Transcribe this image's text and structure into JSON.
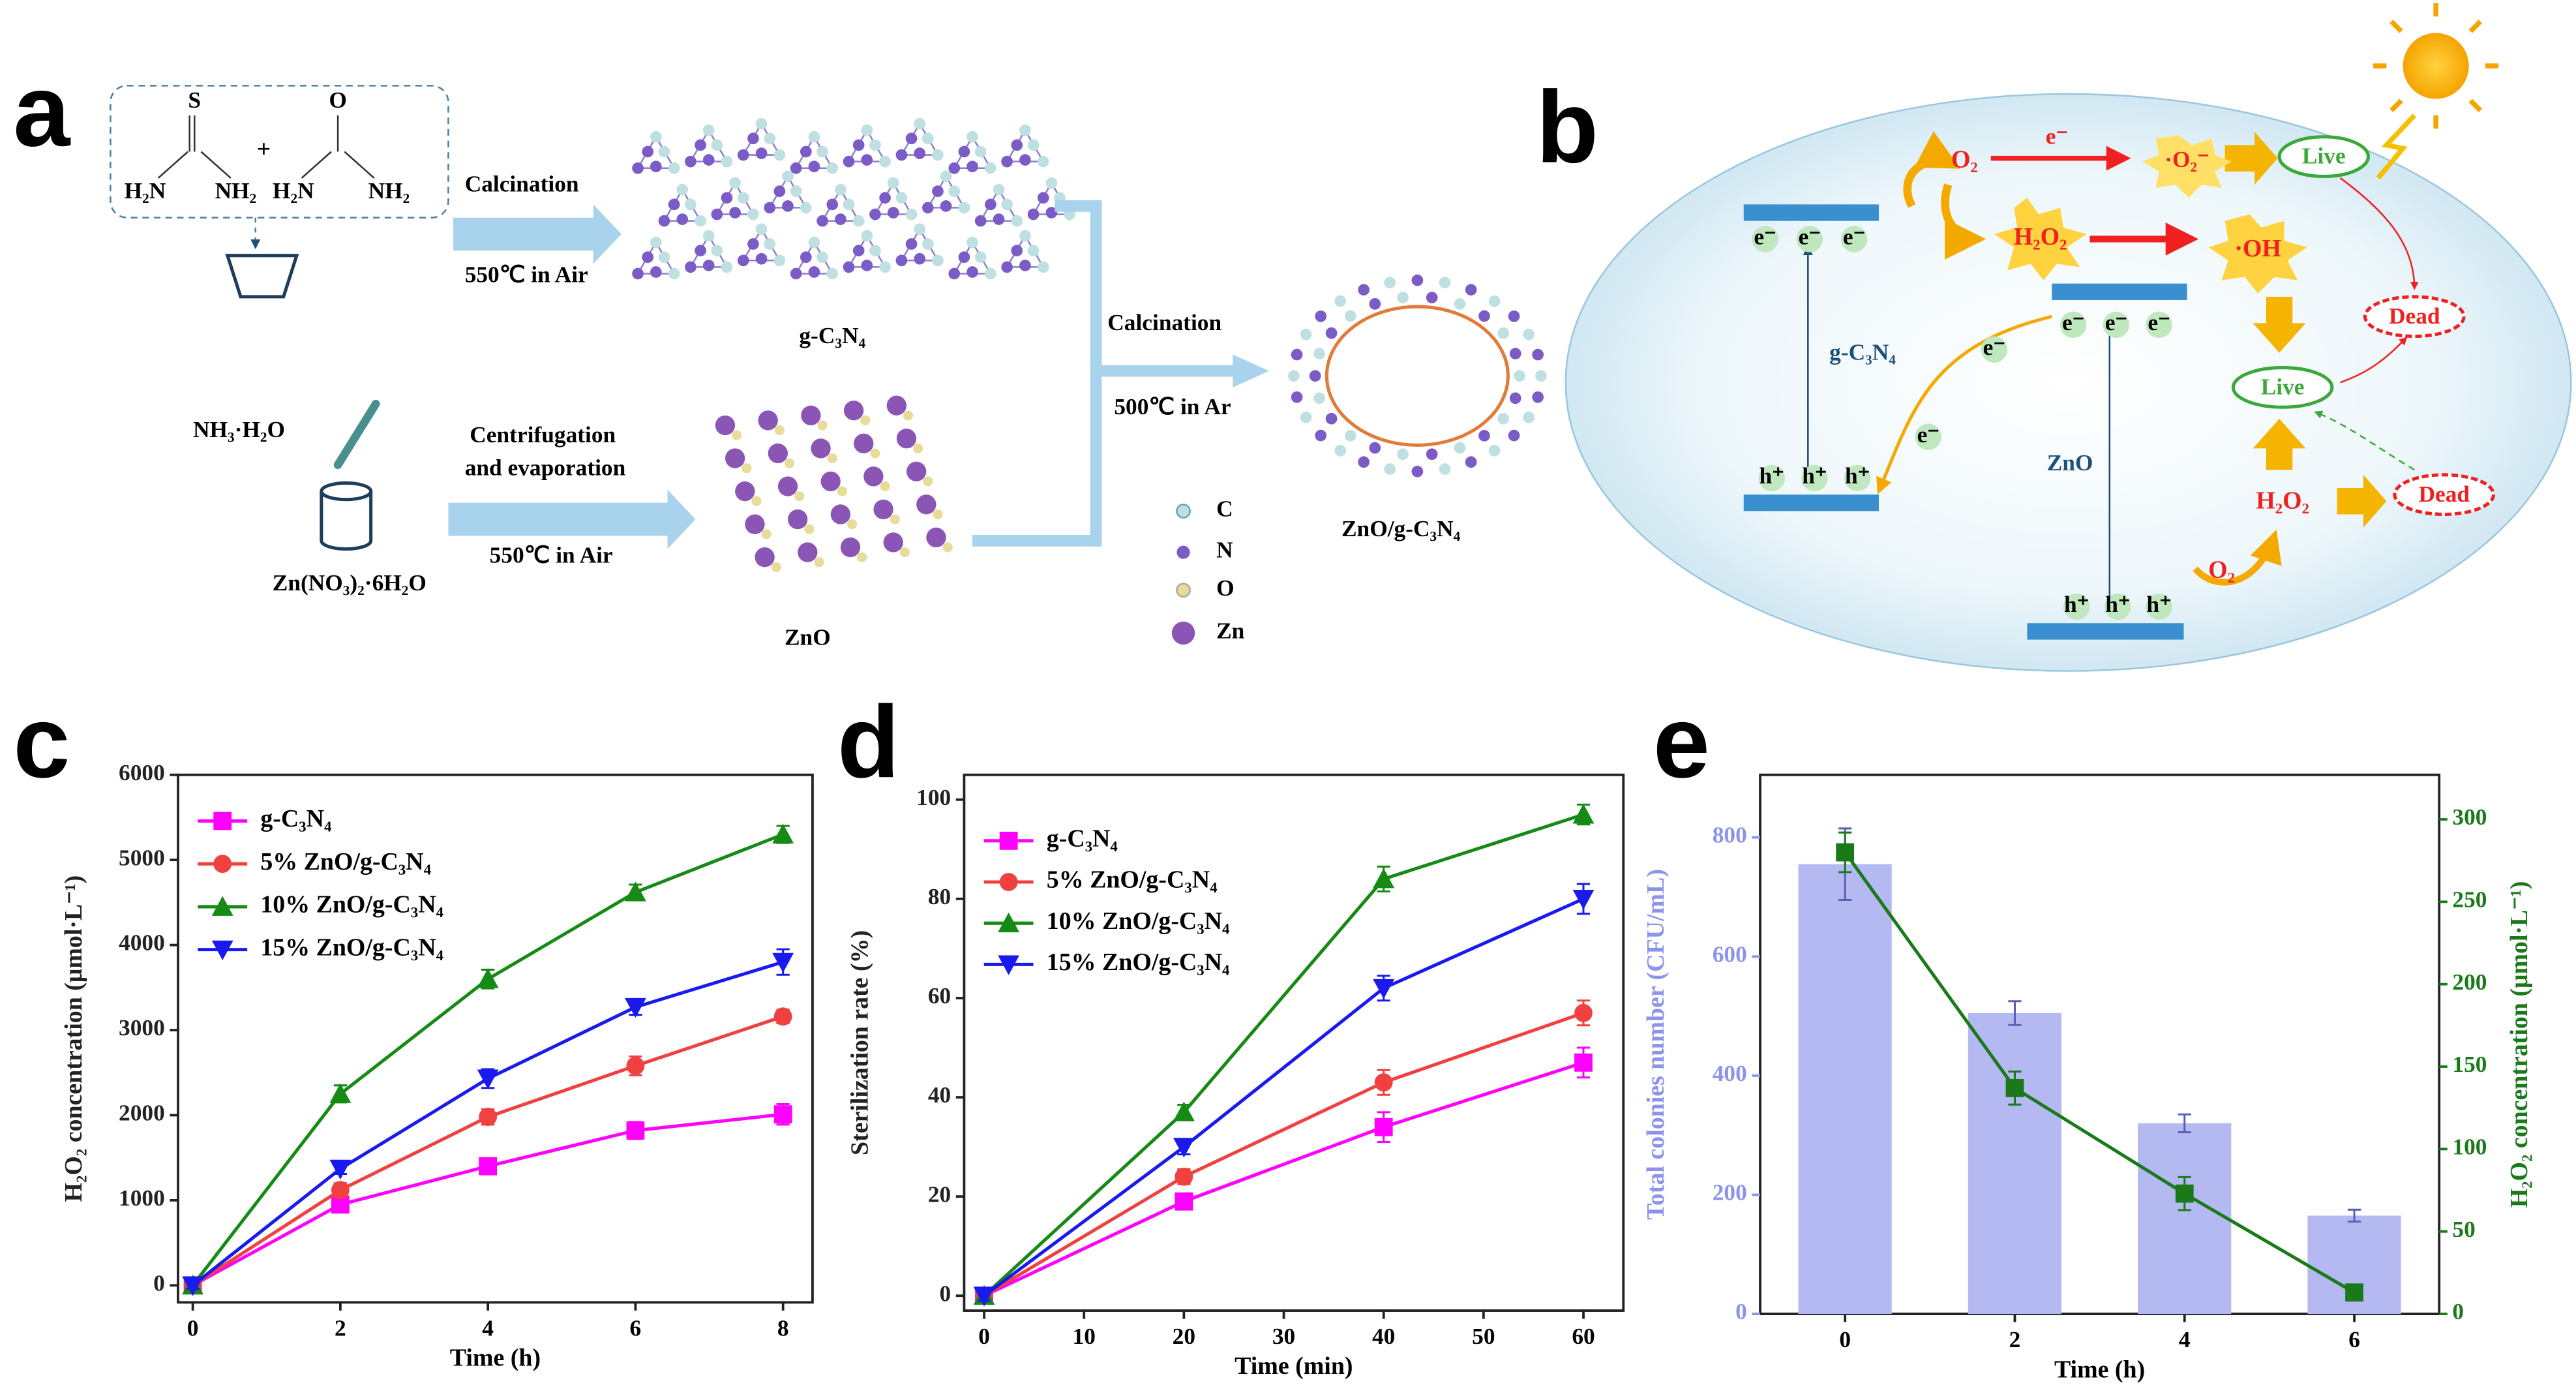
{
  "panels": [
    "a",
    "b",
    "c",
    "d",
    "e"
  ],
  "scheme_a": {
    "texts": [
      "S",
      "O",
      "H₂N",
      "NH₂",
      "H₂N",
      "NH₂",
      "+",
      "Calcination",
      "550℃ in Air",
      "g-C₃N₄",
      "NH₃·H₂O",
      "Zn(NO₃)₂·6H₂O",
      "Centrifugation",
      "and evaporation",
      "550℃ in Air",
      "ZnO",
      "Calcination",
      "500℃ in Ar",
      "ZnO/g-C₃N₄",
      "C",
      "N",
      "O",
      "Zn"
    ]
  },
  "scheme_b": {
    "texts": [
      "O₂",
      "e⁻",
      "·O₂⁻",
      "Live",
      "H₂O₂",
      "·OH",
      "Dead",
      "Live",
      "Dead",
      "H₂O₂",
      "O₂",
      "g-C₃N₄",
      "ZnO",
      "e⁻",
      "h⁺"
    ]
  },
  "chart_data": [
    {
      "type": "line",
      "x": [
        0,
        2,
        4,
        6,
        8
      ],
      "xlim": [
        -0.2,
        8.4
      ],
      "xticks": [
        0,
        2,
        4,
        6,
        8
      ],
      "ylim": [
        -200,
        6000
      ],
      "yticks": [
        0,
        1000,
        2000,
        3000,
        4000,
        5000,
        6000
      ],
      "xlabel": "Time (h)",
      "ylabel": "H₂O₂ concentration (μmol·L⁻¹)",
      "legend": "upper left",
      "series": [
        {
          "name": "g-C₃N₄",
          "color": "#ff00ff",
          "marker": "square",
          "values": [
            0,
            950,
            1400,
            1820,
            2010
          ],
          "errors": [
            40,
            80,
            80,
            100,
            120
          ]
        },
        {
          "name": "5% ZnO/g-C₃N₄",
          "color": "#f04040",
          "marker": "circle",
          "values": [
            0,
            1120,
            1980,
            2580,
            3160
          ],
          "errors": [
            40,
            80,
            90,
            110,
            80
          ]
        },
        {
          "name": "10% ZnO/g-C₃N₄",
          "color": "#158a15",
          "marker": "triangle-up",
          "values": [
            0,
            2250,
            3600,
            4620,
            5300
          ],
          "errors": [
            40,
            100,
            110,
            90,
            100
          ]
        },
        {
          "name": "15% ZnO/g-C₃N₄",
          "color": "#1a1aee",
          "marker": "triangle-down",
          "values": [
            0,
            1370,
            2430,
            3270,
            3800
          ],
          "errors": [
            40,
            60,
            110,
            90,
            150
          ]
        }
      ]
    },
    {
      "type": "line",
      "x": [
        0,
        20,
        40,
        60
      ],
      "xlim": [
        -2,
        64
      ],
      "xticks": [
        0,
        10,
        20,
        30,
        40,
        50,
        60
      ],
      "ylim": [
        -3,
        105
      ],
      "yticks": [
        0,
        20,
        40,
        60,
        80,
        100
      ],
      "xlabel": "Time (min)",
      "ylabel": "Sterilization rate (%)",
      "legend": "upper left",
      "series": [
        {
          "name": "g-C₃N₄",
          "color": "#ff00ff",
          "marker": "square",
          "values": [
            0,
            19,
            34,
            47
          ],
          "errors": [
            1,
            1.5,
            3,
            3
          ]
        },
        {
          "name": "5% ZnO/g-C₃N₄",
          "color": "#f04040",
          "marker": "circle",
          "values": [
            0,
            24,
            43,
            57
          ],
          "errors": [
            1,
            1.5,
            2.5,
            2.5
          ]
        },
        {
          "name": "10% ZnO/g-C₃N₄",
          "color": "#158a15",
          "marker": "triangle-up",
          "values": [
            0,
            37,
            84,
            97
          ],
          "errors": [
            1,
            1.5,
            2.5,
            2
          ]
        },
        {
          "name": "15% ZnO/g-C₃N₄",
          "color": "#1a1aee",
          "marker": "triangle-down",
          "values": [
            0,
            30,
            62,
            80
          ],
          "errors": [
            1,
            1.5,
            2.5,
            3
          ]
        }
      ]
    },
    {
      "type": "bar_line",
      "categories": [
        "0",
        "2",
        "4",
        "6"
      ],
      "ylim": [
        0,
        905
      ],
      "yticks": [
        0,
        200,
        400,
        600,
        800
      ],
      "y2lim": [
        0,
        327
      ],
      "y2ticks": [
        0,
        50,
        100,
        150,
        200,
        250,
        300
      ],
      "xlabel": "Time (h)",
      "ylabel": "Total colonies number (CFU/mL)",
      "y2label": "H₂O₂ concentration (μmol·L⁻¹)",
      "ycolor": "#8c93ea",
      "y2color": "#1a7a1a",
      "series": [
        {
          "type": "bar",
          "color": "#b4b9f2",
          "values": [
            755,
            505,
            320,
            165
          ],
          "errors": [
            60,
            20,
            15,
            10
          ]
        },
        {
          "type": "line",
          "axis": "y2",
          "color": "#1a7a1a",
          "marker": "square",
          "values": [
            280,
            137,
            73,
            13
          ],
          "errors": [
            12,
            10,
            10,
            2
          ]
        }
      ]
    }
  ]
}
